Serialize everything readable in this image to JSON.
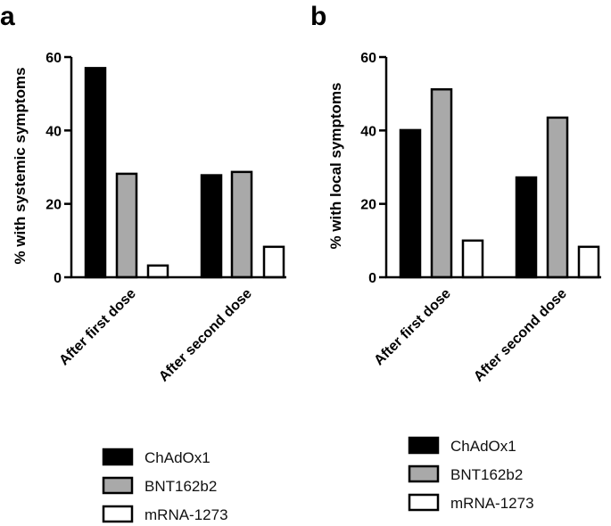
{
  "chart_data": [
    {
      "type": "bar",
      "panel": "a",
      "categories": [
        "After first dose",
        "After second dose"
      ],
      "series": [
        {
          "name": "ChAdOx1",
          "color": "#000000",
          "values": [
            57,
            27.8
          ]
        },
        {
          "name": "BNT162b2",
          "color": "#a9a9a9",
          "values": [
            28.2,
            28.7
          ]
        },
        {
          "name": "mRNA-1273",
          "color": "#ffffff",
          "values": [
            3.2,
            8.3
          ]
        }
      ],
      "title": "",
      "xlabel": "",
      "ylabel": "% with systemic symptoms",
      "ylim": [
        0,
        60
      ],
      "yticks": [
        "0",
        "20",
        "40",
        "60"
      ],
      "legend": [
        "ChAdOx1",
        "BNT162b2",
        "mRNA-1273"
      ],
      "legend_position": "bottom"
    },
    {
      "type": "bar",
      "panel": "b",
      "categories": [
        "After first dose",
        "After second dose"
      ],
      "series": [
        {
          "name": "ChAdOx1",
          "color": "#000000",
          "values": [
            40.1,
            27.2
          ]
        },
        {
          "name": "BNT162b2",
          "color": "#a9a9a9",
          "values": [
            51.2,
            43.5
          ]
        },
        {
          "name": "mRNA-1273",
          "color": "#ffffff",
          "values": [
            10,
            8.3
          ]
        }
      ],
      "title": "",
      "xlabel": "",
      "ylabel": "% with local symptoms",
      "ylim": [
        0,
        60
      ],
      "yticks": [
        "0",
        "20",
        "40",
        "60"
      ],
      "legend": [
        "ChAdOx1",
        "BNT162b2",
        "mRNA-1273"
      ],
      "legend_position": "bottom"
    }
  ]
}
